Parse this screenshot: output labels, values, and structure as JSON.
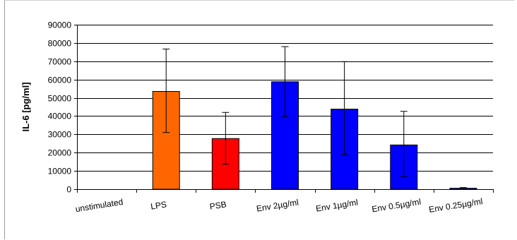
{
  "chart_data": {
    "type": "bar",
    "title": "",
    "xlabel": "",
    "ylabel": "IL-6 [pg/ml]",
    "ylim": [
      0,
      90000
    ],
    "yticks": [
      0,
      10000,
      20000,
      30000,
      40000,
      50000,
      60000,
      70000,
      80000,
      90000
    ],
    "grid": true,
    "legend": "none",
    "categories": [
      "unstimulated",
      "LPS",
      "PSB",
      "Env 2µg/ml",
      "Env 1µg/ml",
      "Env 0.5µg/ml",
      "Env 0.25µg/ml"
    ],
    "values": [
      0,
      53500,
      27700,
      58800,
      43800,
      24200,
      500
    ],
    "error_low": [
      0,
      31000,
      13700,
      39700,
      18800,
      6800,
      100
    ],
    "error_high": [
      0,
      76700,
      42000,
      78000,
      69800,
      42600,
      900
    ],
    "colors": [
      "#ff6600",
      "#ff6600",
      "#ff0000",
      "#0000ff",
      "#0000ff",
      "#0000ff",
      "#0000ff"
    ]
  }
}
